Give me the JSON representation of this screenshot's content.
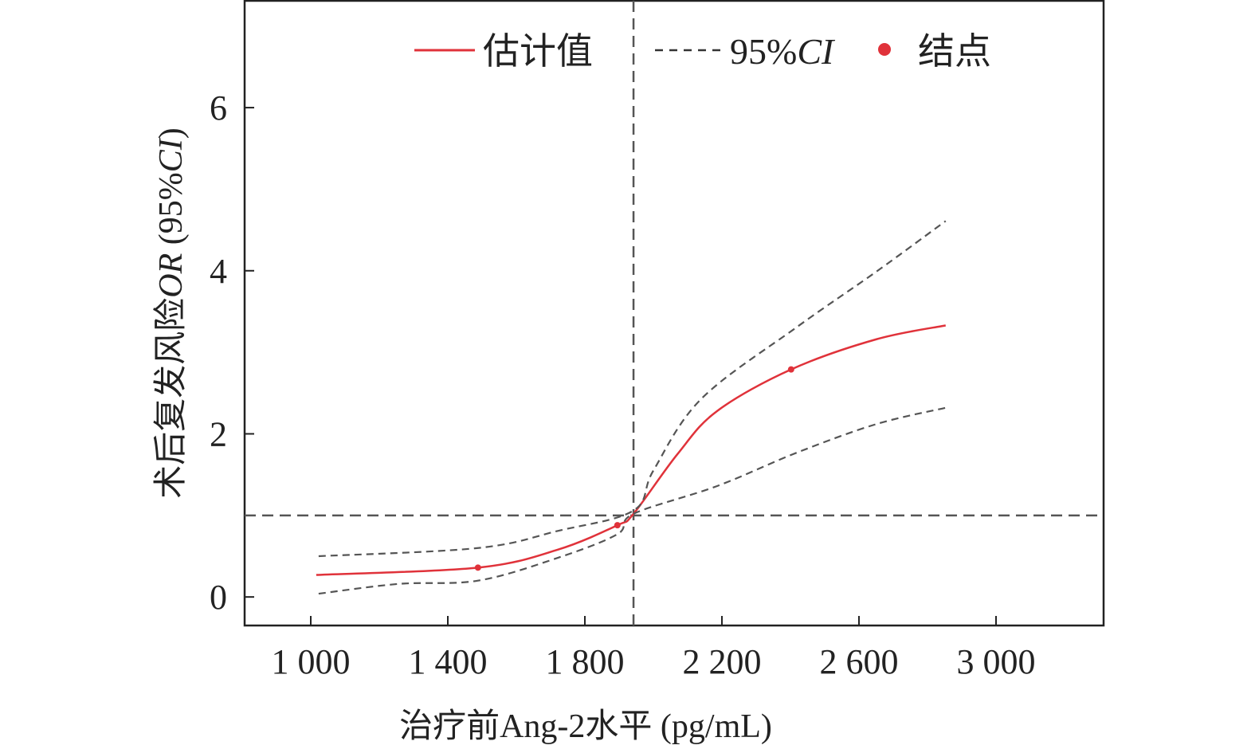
{
  "chart_data": {
    "type": "line",
    "xlabel": "治疗前Ang-2水平 (pg/mL)",
    "ylabel_prefix": "术后复发风险",
    "ylabel_italic": "OR",
    "ylabel_suffix": " (95%",
    "ylabel_italic2": "CI",
    "ylabel_end": ")",
    "xlim": [
      807,
      3314
    ],
    "ylim": [
      -0.35,
      7.31
    ],
    "xticks": [
      1000,
      1400,
      1800,
      2200,
      2600,
      3000
    ],
    "xtick_labels": [
      "1 000",
      "1 400",
      "1 800",
      "2 200",
      "2 600",
      "3 000"
    ],
    "yticks": [
      0,
      2,
      4,
      6
    ],
    "ytick_labels": [
      "0",
      "2",
      "4",
      "6"
    ],
    "grid": false,
    "legend_placement": "top",
    "reference_lines": {
      "x": 1942,
      "y": 1
    },
    "legend": {
      "estimate": "估计值",
      "ci_prefix": "95%",
      "ci_italic": "CI",
      "knots": "结点"
    },
    "colors": {
      "estimate": "#e0323a",
      "ci": "#555555",
      "ref": "#555555",
      "knots": "#e0323a"
    },
    "series": [
      {
        "name": "估计值",
        "style": "solid",
        "x": [
          1016,
          1488,
          1721,
          1895,
          1942,
          2070,
          2186,
          2402,
          2651,
          2853
        ],
        "y": [
          0.27,
          0.36,
          0.58,
          0.88,
          1.02,
          1.75,
          2.28,
          2.79,
          3.16,
          3.33
        ]
      },
      {
        "name": "95%CI",
        "style": "dashed",
        "x": [
          1023,
          1488,
          1721,
          1942,
          2000,
          2140,
          2419,
          2651,
          2853
        ],
        "y": [
          0.5,
          0.6,
          0.81,
          1.06,
          1.55,
          2.43,
          3.31,
          3.99,
          4.61
        ]
      },
      {
        "name": "95%CI",
        "style": "dashed",
        "x": [
          1023,
          1256,
          1488,
          1721,
          1895,
          1942,
          2186,
          2419,
          2651,
          2853
        ],
        "y": [
          0.04,
          0.16,
          0.2,
          0.48,
          0.77,
          1.02,
          1.36,
          1.77,
          2.12,
          2.32
        ]
      }
    ],
    "knots": {
      "x": [
        1488,
        1895,
        2402
      ],
      "y": [
        0.36,
        0.88,
        2.79
      ]
    }
  }
}
